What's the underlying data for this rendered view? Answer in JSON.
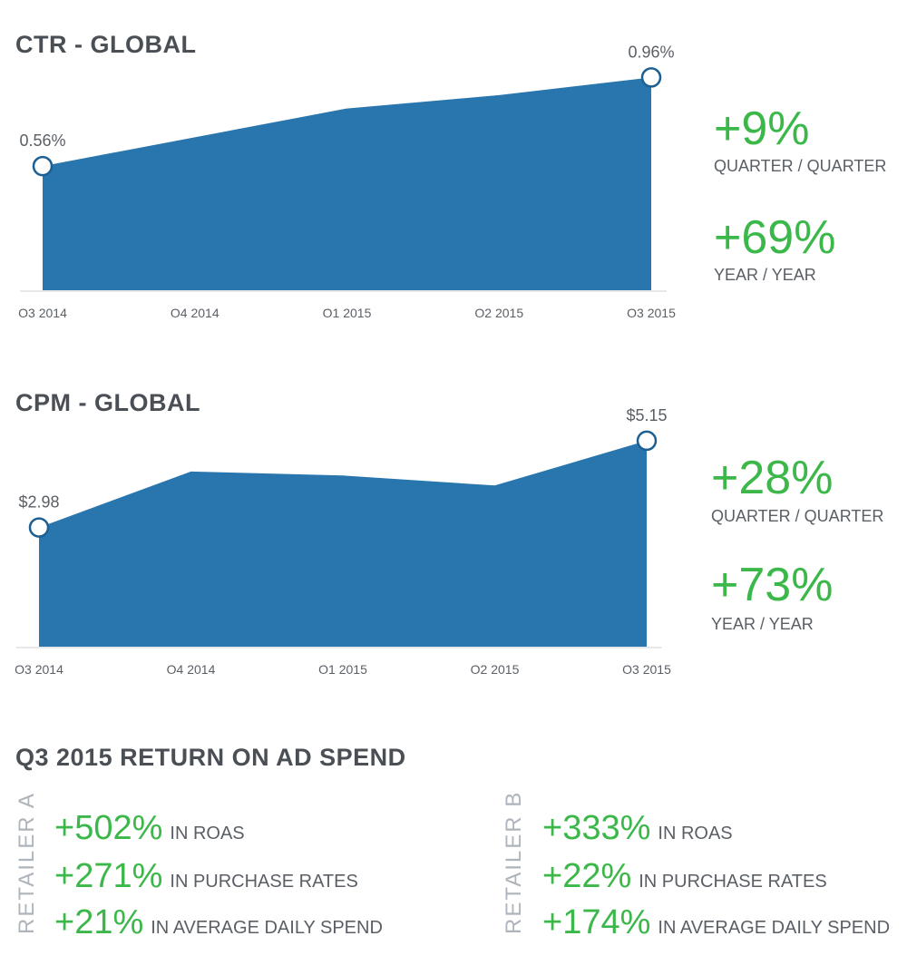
{
  "chart_data": [
    {
      "type": "area",
      "title": "CTR - GLOBAL",
      "categories": [
        "O3 2014",
        "O4 2014",
        "O1 2015",
        "O2 2015",
        "O3 2015"
      ],
      "values": [
        0.56,
        0.69,
        0.82,
        0.88,
        0.96
      ],
      "unit": "%",
      "data_labels": {
        "first": "0.56%",
        "last": "0.96%"
      },
      "ylim": [
        0,
        1.0
      ],
      "grid": false,
      "color": "#2876ad",
      "stats": [
        {
          "value": "+9%",
          "label": "QUARTER / QUARTER"
        },
        {
          "value": "+69%",
          "label": "YEAR / YEAR"
        }
      ]
    },
    {
      "type": "area",
      "title": "CPM - GLOBAL",
      "categories": [
        "O3 2014",
        "O4 2014",
        "O1 2015",
        "O2 2015",
        "O3 2015"
      ],
      "values": [
        2.98,
        4.38,
        4.28,
        4.03,
        5.15
      ],
      "unit": "$",
      "data_labels": {
        "first": "$2.98",
        "last": "$5.15"
      },
      "ylim": [
        0,
        5.5
      ],
      "grid": false,
      "color": "#2876ad",
      "stats": [
        {
          "value": "+28%",
          "label": "QUARTER / QUARTER"
        },
        {
          "value": "+73%",
          "label": "YEAR / YEAR"
        }
      ]
    }
  ],
  "roas": {
    "title": "Q3 2015 RETURN ON AD SPEND",
    "retailers": [
      {
        "name": "RETAILER A",
        "rows": [
          {
            "value": "+502%",
            "label": "IN ROAS"
          },
          {
            "value": "+271%",
            "label": "IN PURCHASE RATES"
          },
          {
            "value": "+21%",
            "label": "IN AVERAGE DAILY SPEND"
          }
        ]
      },
      {
        "name": "RETAILER B",
        "rows": [
          {
            "value": "+333%",
            "label": "IN ROAS"
          },
          {
            "value": "+22%",
            "label": "IN PURCHASE RATES"
          },
          {
            "value": "+174%",
            "label": "IN AVERAGE DAILY SPEND"
          }
        ]
      }
    ]
  },
  "colors": {
    "area": "#2876ad",
    "positive": "#3cb84a",
    "text": "#4a4f55"
  }
}
